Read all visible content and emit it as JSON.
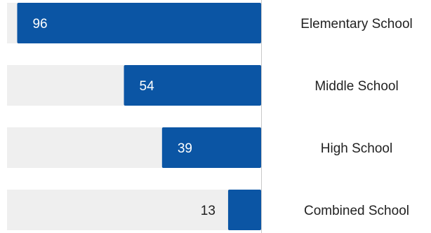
{
  "chart_data": {
    "type": "bar",
    "orientation": "horizontal",
    "direction": "bars extend leftward from the baseline",
    "categories": [
      "Elementary School",
      "Middle School",
      "High School",
      "Combined School"
    ],
    "values": [
      96,
      54,
      39,
      13
    ],
    "title": "",
    "xlabel": "",
    "ylabel": "",
    "xlim": [
      0,
      100
    ],
    "grid": false,
    "legend": "none",
    "background_track": true
  },
  "colors": {
    "bar": "#0b55a4",
    "track": "#efefef",
    "axis": "#c8c8c8",
    "label_inside": "#ffffff",
    "label_outside": "#222222",
    "category_text": "#222222"
  }
}
